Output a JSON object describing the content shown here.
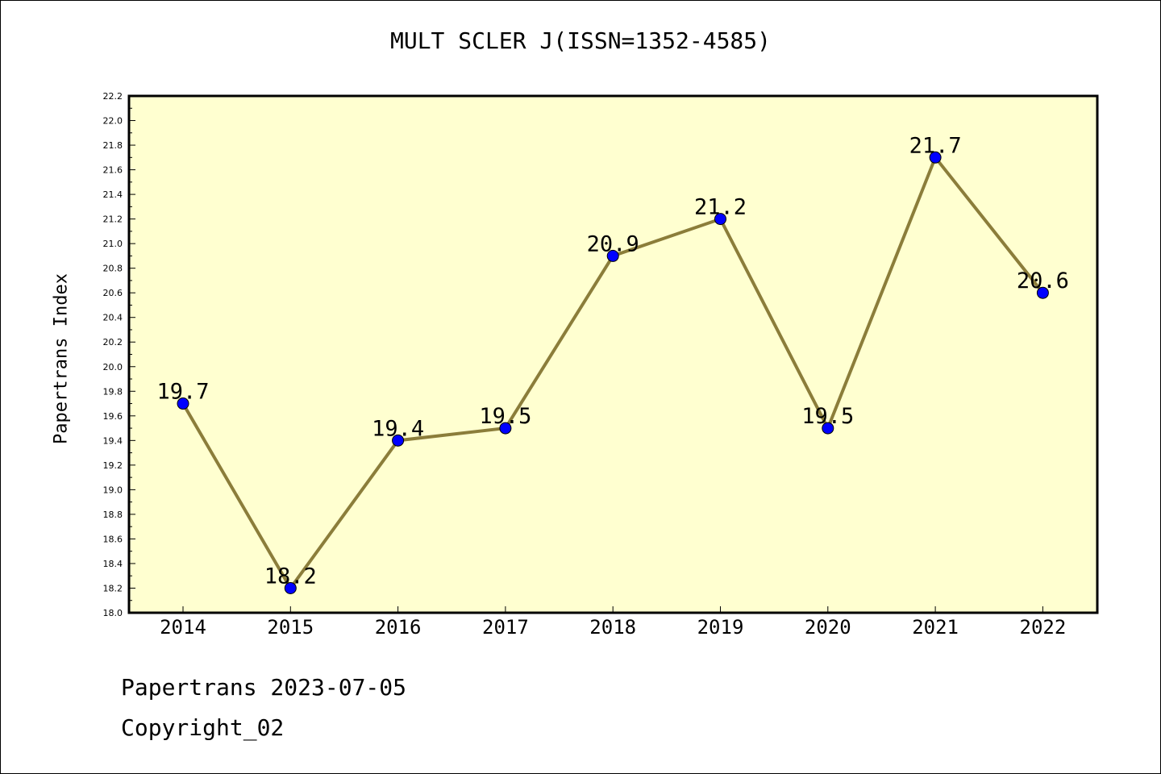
{
  "chart_data": {
    "type": "line",
    "title": "MULT SCLER J(ISSN=1352-4585)",
    "ylabel": "Papertrans Index",
    "xlabel": "",
    "categories": [
      "2014",
      "2015",
      "2016",
      "2017",
      "2018",
      "2019",
      "2020",
      "2021",
      "2022"
    ],
    "series": [
      {
        "values": [
          19.7,
          18.2,
          19.4,
          19.5,
          20.9,
          21.2,
          19.5,
          21.7,
          20.6
        ]
      }
    ],
    "data_labels": [
      "19.7",
      "18.2",
      "19.4",
      "19.5",
      "20.9",
      "21.2",
      "19.5",
      "21.7",
      "20.6"
    ],
    "ylim": [
      18.0,
      22.2
    ],
    "ytick_step": 0.2,
    "grid": false,
    "legend": "none",
    "colors": {
      "line": "#8b7d3a",
      "marker": "#0000ff",
      "plot_bg": "#ffffd0",
      "axis": "#000000"
    }
  },
  "footer": {
    "line1": "Papertrans 2023-07-05",
    "line2": "Copyright_02"
  }
}
